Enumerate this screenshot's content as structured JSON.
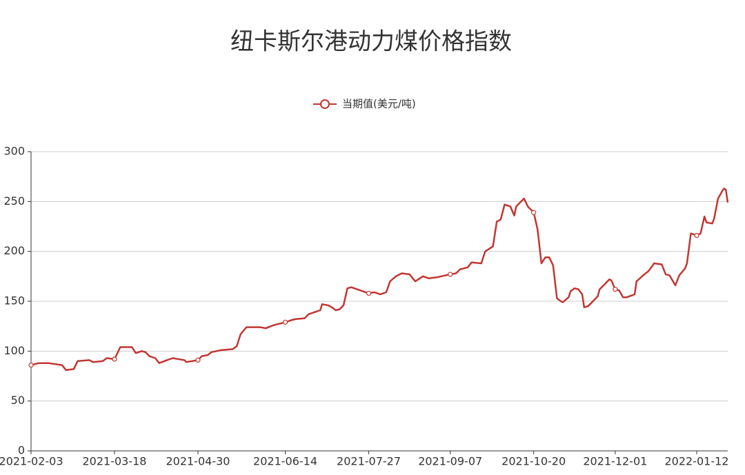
{
  "chart_data": {
    "type": "line",
    "title": "纽卡斯尔港动力煤价格指数",
    "x": [
      "2021-02-03",
      "2021-02-07",
      "2021-02-12",
      "2021-02-19",
      "2021-02-21",
      "2021-02-25",
      "2021-02-27",
      "2021-03-05",
      "2021-03-07",
      "2021-03-12",
      "2021-03-14",
      "2021-03-18",
      "2021-03-21",
      "2021-03-27",
      "2021-03-29",
      "2021-04-01",
      "2021-04-03",
      "2021-04-05",
      "2021-04-08",
      "2021-04-10",
      "2021-04-14",
      "2021-04-17",
      "2021-04-23",
      "2021-04-24",
      "2021-04-30",
      "2021-05-02",
      "2021-05-05",
      "2021-05-07",
      "2021-05-12",
      "2021-05-18",
      "2021-05-20",
      "2021-05-22",
      "2021-05-25",
      "2021-06-01",
      "2021-06-04",
      "2021-06-08",
      "2021-06-14",
      "2021-06-17",
      "2021-06-19",
      "2021-06-24",
      "2021-06-26",
      "2021-06-29",
      "2021-07-02",
      "2021-07-03",
      "2021-07-06",
      "2021-07-08",
      "2021-07-10",
      "2021-07-12",
      "2021-07-14",
      "2021-07-16",
      "2021-07-18",
      "2021-07-21",
      "2021-07-27",
      "2021-07-30",
      "2021-08-02",
      "2021-08-05",
      "2021-08-07",
      "2021-08-10",
      "2021-08-13",
      "2021-08-17",
      "2021-08-20",
      "2021-08-24",
      "2021-08-27",
      "2021-08-31",
      "2021-09-07",
      "2021-09-10",
      "2021-09-12",
      "2021-09-16",
      "2021-09-18",
      "2021-09-23",
      "2021-09-25",
      "2021-09-29",
      "2021-10-01",
      "2021-10-03",
      "2021-10-05",
      "2021-10-08",
      "2021-10-10",
      "2021-10-11",
      "2021-10-13",
      "2021-10-15",
      "2021-10-17",
      "2021-10-20",
      "2021-10-22",
      "2021-10-24",
      "2021-10-26",
      "2021-10-28",
      "2021-10-30",
      "2021-11-01",
      "2021-11-03",
      "2021-11-04",
      "2021-11-07",
      "2021-11-08",
      "2021-11-10",
      "2021-11-12",
      "2021-11-14",
      "2021-11-15",
      "2021-11-17",
      "2021-11-20",
      "2021-11-22",
      "2021-11-23",
      "2021-11-26",
      "2021-11-28",
      "2021-11-29",
      "2021-12-01",
      "2021-12-03",
      "2021-12-05",
      "2021-12-07",
      "2021-12-11",
      "2021-12-12",
      "2021-12-16",
      "2021-12-18",
      "2021-12-20",
      "2021-12-21",
      "2021-12-25",
      "2021-12-27",
      "2021-12-29",
      "2022-01-01",
      "2022-01-03",
      "2022-01-06",
      "2022-01-07",
      "2022-01-09",
      "2022-01-12",
      "2022-01-14",
      "2022-01-16",
      "2022-01-17",
      "2022-01-20",
      "2022-01-21",
      "2022-01-23",
      "2022-01-25",
      "2022-01-26",
      "2022-01-27",
      "2022-01-28"
    ],
    "series": [
      {
        "name": "当期值(美元/吨)",
        "color": "#c23531",
        "values": [
          86,
          88,
          88,
          86,
          81,
          82,
          90,
          91,
          89,
          90,
          93,
          92,
          104,
          104,
          98,
          100,
          99,
          95,
          93,
          88,
          91,
          93,
          91,
          89,
          91,
          95,
          96,
          99,
          101,
          102,
          105,
          117,
          124,
          124,
          123,
          126,
          129,
          131,
          132,
          133,
          137,
          139,
          141,
          147,
          146,
          144,
          141,
          142,
          146,
          163,
          164,
          162,
          158,
          159,
          157,
          159,
          170,
          175,
          178,
          177,
          170,
          175,
          173,
          174,
          177,
          178,
          182,
          184,
          189,
          188,
          200,
          205,
          230,
          232,
          247,
          245,
          236,
          245,
          249,
          253,
          245,
          239,
          222,
          188,
          194,
          194,
          186,
          153,
          150,
          149,
          154,
          160,
          163,
          162,
          157,
          144,
          145,
          151,
          155,
          162,
          168,
          172,
          171,
          162,
          161,
          154,
          154,
          157,
          170,
          177,
          180,
          185,
          188,
          187,
          177,
          176,
          166,
          176,
          183,
          188,
          218,
          216,
          218,
          235,
          229,
          228,
          233,
          253,
          260,
          263,
          262,
          249
        ]
      }
    ],
    "xlim": [
      "2021-02-03",
      "2022-01-28"
    ],
    "xticks": [
      "2021-02-03",
      "2021-03-18",
      "2021-04-30",
      "2021-06-14",
      "2021-07-27",
      "2021-09-07",
      "2021-10-20",
      "2021-12-01",
      "2022-01-12"
    ],
    "ylim": [
      0,
      300
    ],
    "yticks": [
      0,
      50,
      100,
      150,
      200,
      250,
      300
    ],
    "grid": true
  }
}
